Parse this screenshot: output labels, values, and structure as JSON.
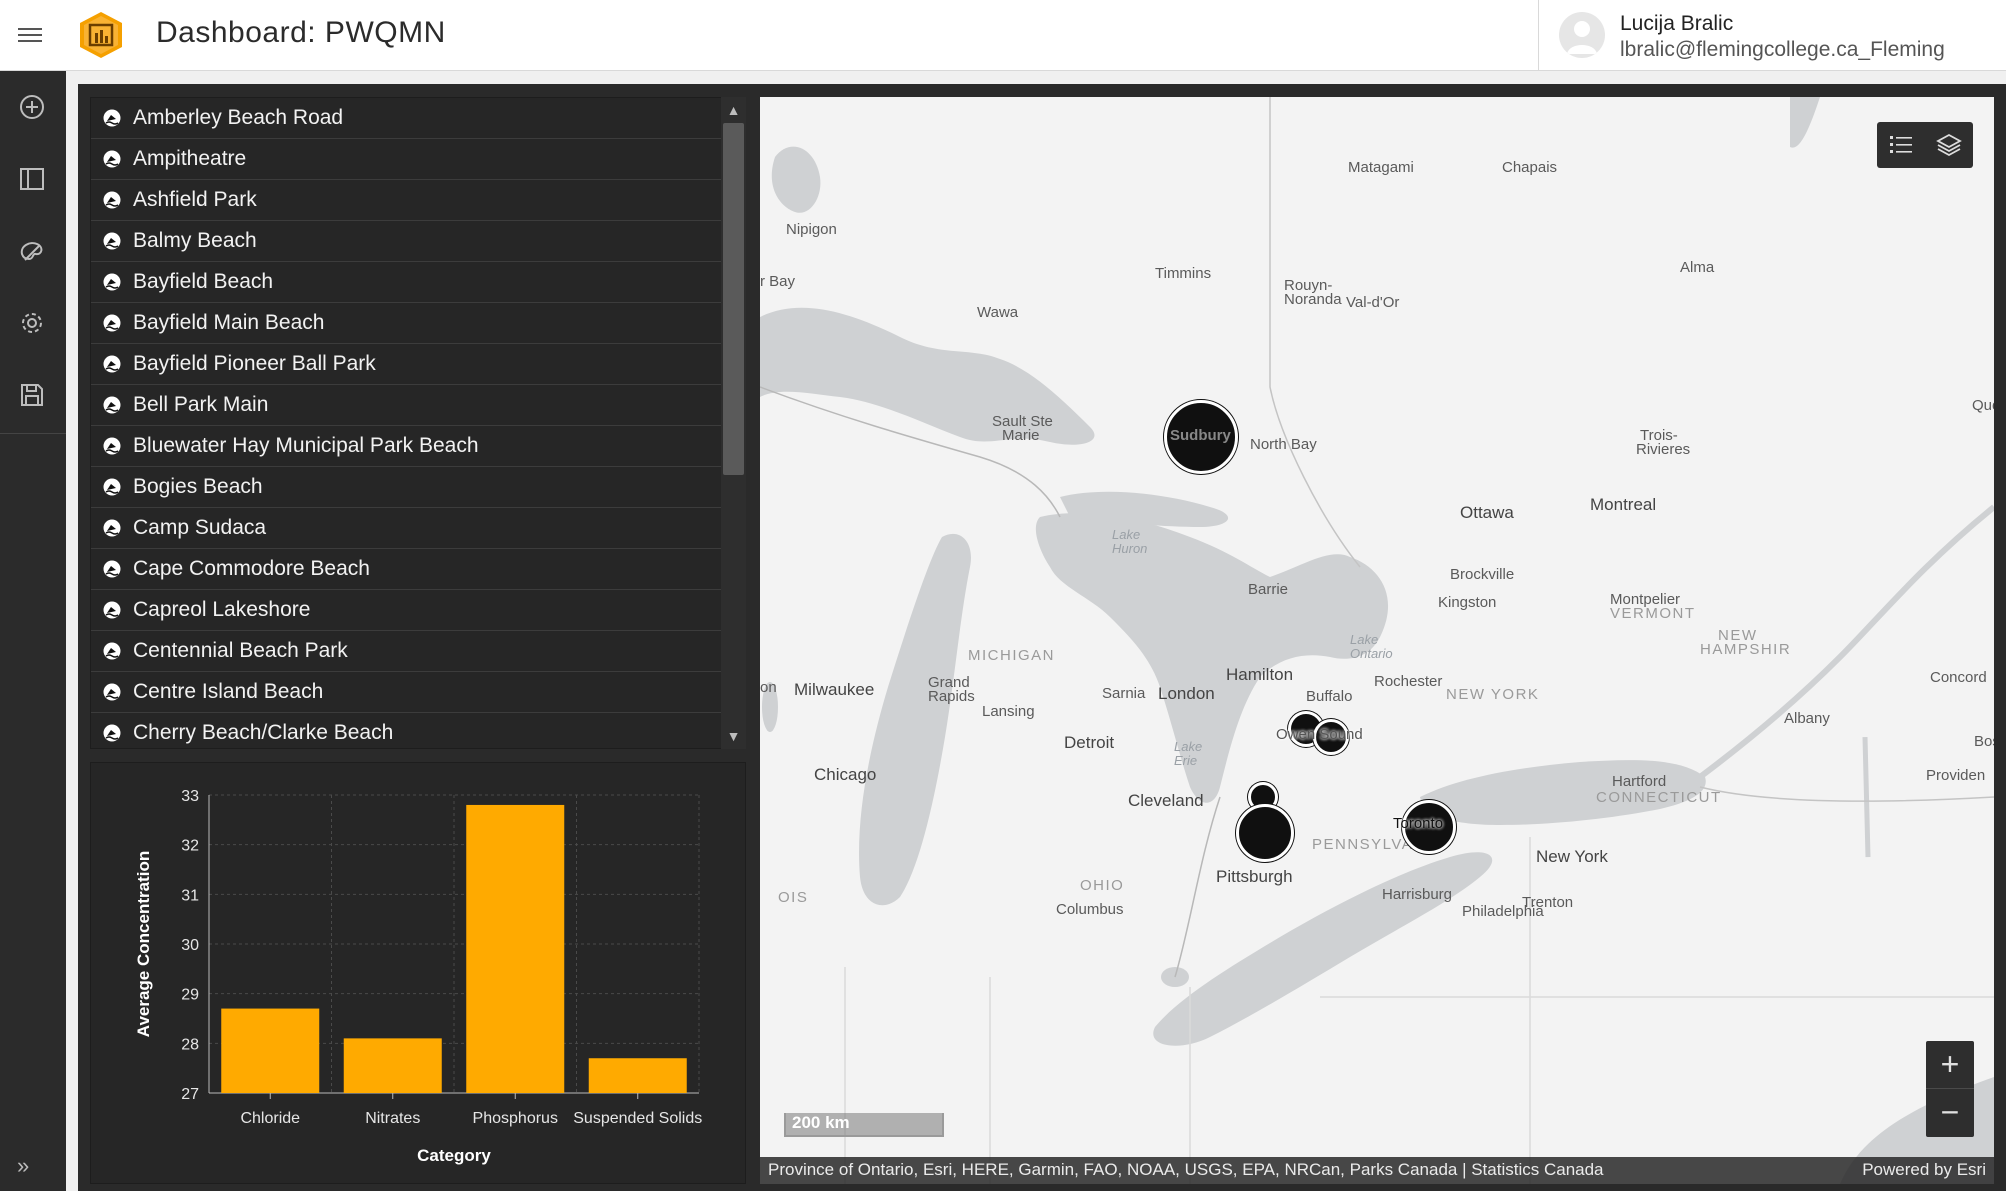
{
  "header": {
    "title": "Dashboard: PWQMN",
    "user_name": "Lucija Bralic",
    "user_email": "lbralic@flemingcollege.ca_Fleming"
  },
  "rail": {
    "items": [
      "add-icon",
      "layout-icon",
      "theme-icon",
      "settings-icon",
      "save-icon"
    ],
    "expand": "»"
  },
  "list": {
    "items": [
      "Amberley Beach Road",
      "Ampitheatre",
      "Ashfield Park",
      "Balmy Beach",
      "Bayfield Beach",
      "Bayfield Main Beach",
      "Bayfield Pioneer Ball Park",
      "Bell Park Main",
      "Bluewater Hay Municipal Park Beach",
      "Bogies Beach",
      "Camp Sudaca",
      "Cape Commodore Beach",
      "Capreol Lakeshore",
      "Centennial Beach Park",
      "Centre Island Beach",
      "Cherry Beach/Clarke Beach"
    ]
  },
  "chart_data": {
    "type": "bar",
    "categories": [
      "Chloride",
      "Nitrates",
      "Phosphorus",
      "Suspended Solids"
    ],
    "values": [
      28.7,
      28.1,
      32.8,
      27.7
    ],
    "xlabel": "Category",
    "ylabel": "Average Concentration",
    "ylim": [
      27,
      33
    ],
    "yticks": [
      27,
      28,
      29,
      30,
      31,
      32,
      33
    ],
    "grid": true,
    "bar_color": "#ffaa00"
  },
  "map": {
    "labels": [
      {
        "text": "Matagami",
        "kind": "normal"
      },
      {
        "text": "Chapais",
        "kind": "normal"
      },
      {
        "text": "Nipigon",
        "kind": "normal"
      },
      {
        "text": "Timmins",
        "kind": "normal"
      },
      {
        "text": "Rouyn-",
        "kind": "normal"
      },
      {
        "text": "Noranda",
        "kind": "normal"
      },
      {
        "text": "Val-d'Or",
        "kind": "normal"
      },
      {
        "text": "Alma",
        "kind": "normal"
      },
      {
        "text": "r Bay",
        "kind": "normal"
      },
      {
        "text": "Wawa",
        "kind": "normal"
      },
      {
        "text": "Queb",
        "kind": "normal"
      },
      {
        "text": "Sault Ste",
        "kind": "normal"
      },
      {
        "text": "Marie",
        "kind": "normal"
      },
      {
        "text": "North Bay",
        "kind": "normal"
      },
      {
        "text": "Trois-",
        "kind": "normal"
      },
      {
        "text": "Rivieres",
        "kind": "normal"
      },
      {
        "text": "Montreal",
        "kind": "big"
      },
      {
        "text": "Ottawa",
        "kind": "big"
      },
      {
        "text": "Lake",
        "kind": "water"
      },
      {
        "text": "Huron",
        "kind": "water"
      },
      {
        "text": "Barrie",
        "kind": "normal"
      },
      {
        "text": "Brockville",
        "kind": "normal"
      },
      {
        "text": "Kingston",
        "kind": "normal"
      },
      {
        "text": "Montpelier",
        "kind": "normal"
      },
      {
        "text": "VERMONT",
        "kind": "region"
      },
      {
        "text": "NEW",
        "kind": "region"
      },
      {
        "text": "HAMPSHIR",
        "kind": "region"
      },
      {
        "text": "MICHIGAN",
        "kind": "region"
      },
      {
        "text": "Lake",
        "kind": "water"
      },
      {
        "text": "Ontario",
        "kind": "water"
      },
      {
        "text": "Concord",
        "kind": "normal"
      },
      {
        "text": "Hamilton",
        "kind": "big"
      },
      {
        "text": "Rochester",
        "kind": "normal"
      },
      {
        "text": "on",
        "kind": "normal"
      },
      {
        "text": "Milwaukee",
        "kind": "big"
      },
      {
        "text": "Grand",
        "kind": "normal"
      },
      {
        "text": "Rapids",
        "kind": "normal"
      },
      {
        "text": "Sarnia",
        "kind": "normal"
      },
      {
        "text": "London",
        "kind": "big"
      },
      {
        "text": "NEW YORK",
        "kind": "region"
      },
      {
        "text": "Buffalo",
        "kind": "normal"
      },
      {
        "text": "Lansing",
        "kind": "normal"
      },
      {
        "text": "Albany",
        "kind": "normal"
      },
      {
        "text": "Detroit",
        "kind": "big"
      },
      {
        "text": "Bos",
        "kind": "normal"
      },
      {
        "text": "Lake",
        "kind": "water"
      },
      {
        "text": "Erie",
        "kind": "water"
      },
      {
        "text": "Chicago",
        "kind": "big"
      },
      {
        "text": "Hartford",
        "kind": "normal"
      },
      {
        "text": "CONNECTICUT",
        "kind": "region"
      },
      {
        "text": "Providen",
        "kind": "normal"
      },
      {
        "text": "Cleveland",
        "kind": "big"
      },
      {
        "text": "PENNSYLVANIA",
        "kind": "region"
      },
      {
        "text": "New York",
        "kind": "big"
      },
      {
        "text": "OHIO",
        "kind": "region"
      },
      {
        "text": "Pittsburgh",
        "kind": "big"
      },
      {
        "text": "Harrisburg",
        "kind": "normal"
      },
      {
        "text": "Trenton",
        "kind": "normal"
      },
      {
        "text": "Philadelphia",
        "kind": "normal"
      },
      {
        "text": "OIS",
        "kind": "region"
      },
      {
        "text": "Columbus",
        "kind": "normal"
      }
    ],
    "markers": [
      "Sudbury",
      "Owen Sound",
      "Toronto"
    ],
    "scale_label": "200 km",
    "attribution": "Province of Ontario, Esri, HERE, Garmin, FAO, NOAA, USGS, EPA, NRCan, Parks Canada | Statistics Canada",
    "powered_by": "Powered by Esri",
    "zoom_in": "+",
    "zoom_out": "−"
  }
}
